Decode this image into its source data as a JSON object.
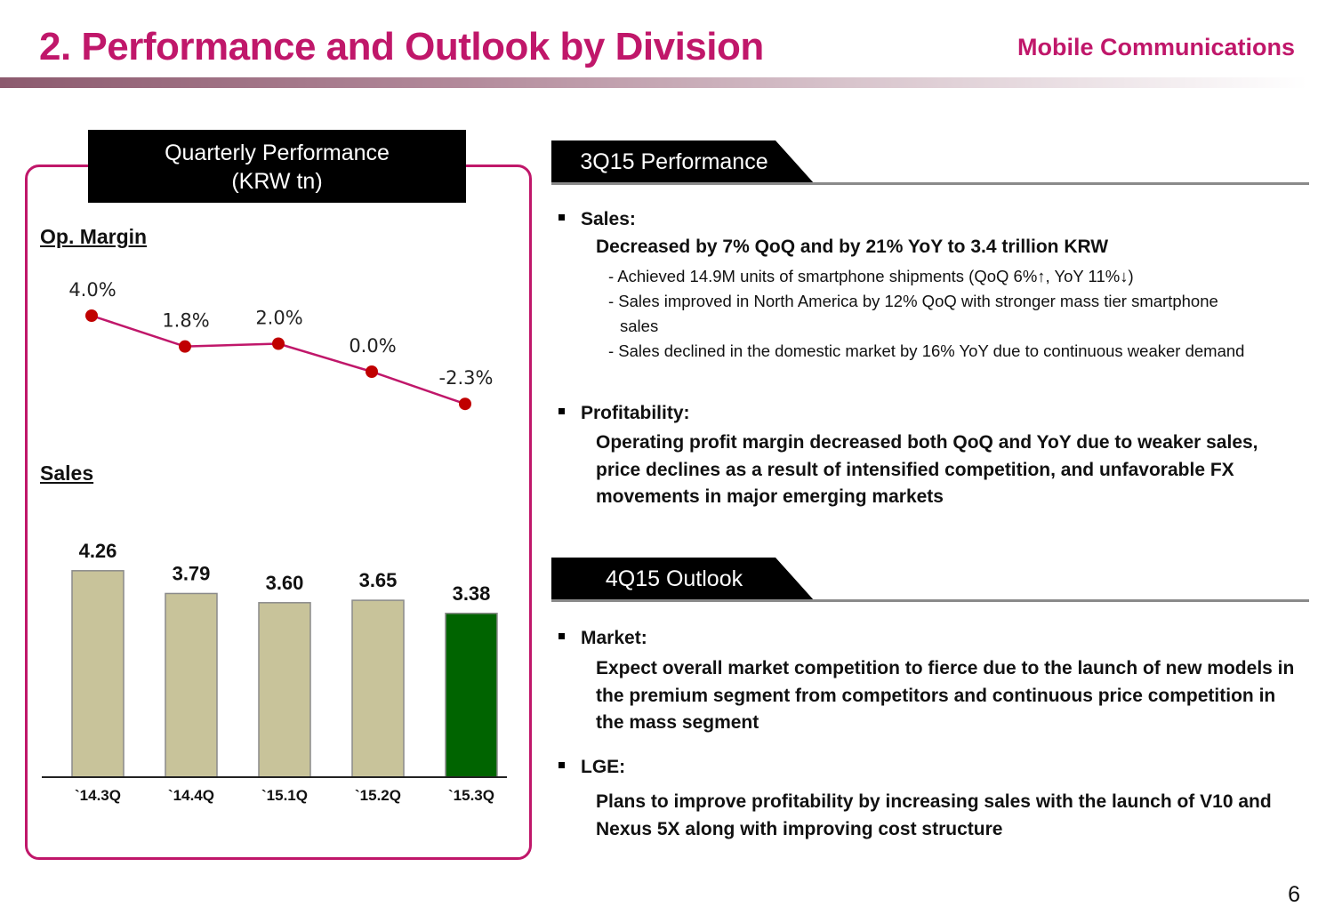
{
  "header": {
    "title": "2. Performance and Outlook by Division",
    "section": "Mobile Communications"
  },
  "chart_panel": {
    "header_line1": "Quarterly Performance",
    "header_line2": "(KRW tn)",
    "op_margin_label": "Op. Margin",
    "sales_label": "Sales"
  },
  "chart_data": [
    {
      "type": "line",
      "title": "Op. Margin",
      "x": [
        "`14.3Q",
        "`14.4Q",
        "`15.1Q",
        "`15.2Q",
        "`15.3Q"
      ],
      "values": [
        4.0,
        1.8,
        2.0,
        0.0,
        -2.3
      ],
      "labels": [
        "4.0%",
        "1.8%",
        "2.0%",
        "0.0%",
        "-2.3%"
      ],
      "color": "#c0176a",
      "marker_color": "#c00000"
    },
    {
      "type": "bar",
      "title": "Sales",
      "categories": [
        "`14.3Q",
        "`14.4Q",
        "`15.1Q",
        "`15.2Q",
        "`15.3Q"
      ],
      "values": [
        4.26,
        3.79,
        3.6,
        3.65,
        3.38
      ],
      "labels": [
        "4.26",
        "3.79",
        "3.60",
        "3.65",
        "3.38"
      ],
      "bar_color": "#c8c39a",
      "highlight_color": "#006400",
      "highlight_index": 4
    }
  ],
  "performance": {
    "tab": "3Q15 Performance",
    "sales_head": "Sales:",
    "sales_summary": "Decreased by 7% QoQ and by 21% YoY to 3.4 trillion KRW",
    "sales_items": [
      "- Achieved 14.9M units of smartphone shipments (QoQ 6%↑, YoY 11%↓)",
      "- Sales improved in North America by 12% QoQ with stronger mass tier smartphone sales",
      "- Sales declined in the domestic market by 16% YoY due to continuous weaker demand"
    ],
    "profit_head": "Profitability:",
    "profit_text": "Operating profit margin decreased both QoQ and YoY due to weaker sales, price declines as a result of intensified competition, and unfavorable FX movements in major emerging markets"
  },
  "outlook": {
    "tab": "4Q15 Outlook",
    "market_head": "Market:",
    "market_text": "Expect overall market competition to fierce due to the launch of new models in the premium segment from competitors and continuous price competition in the mass segment",
    "lge_head": "LGE:",
    "lge_text": "Plans to improve profitability by increasing sales with the launch of V10 and Nexus 5X along with improving cost structure"
  },
  "page_number": "6"
}
